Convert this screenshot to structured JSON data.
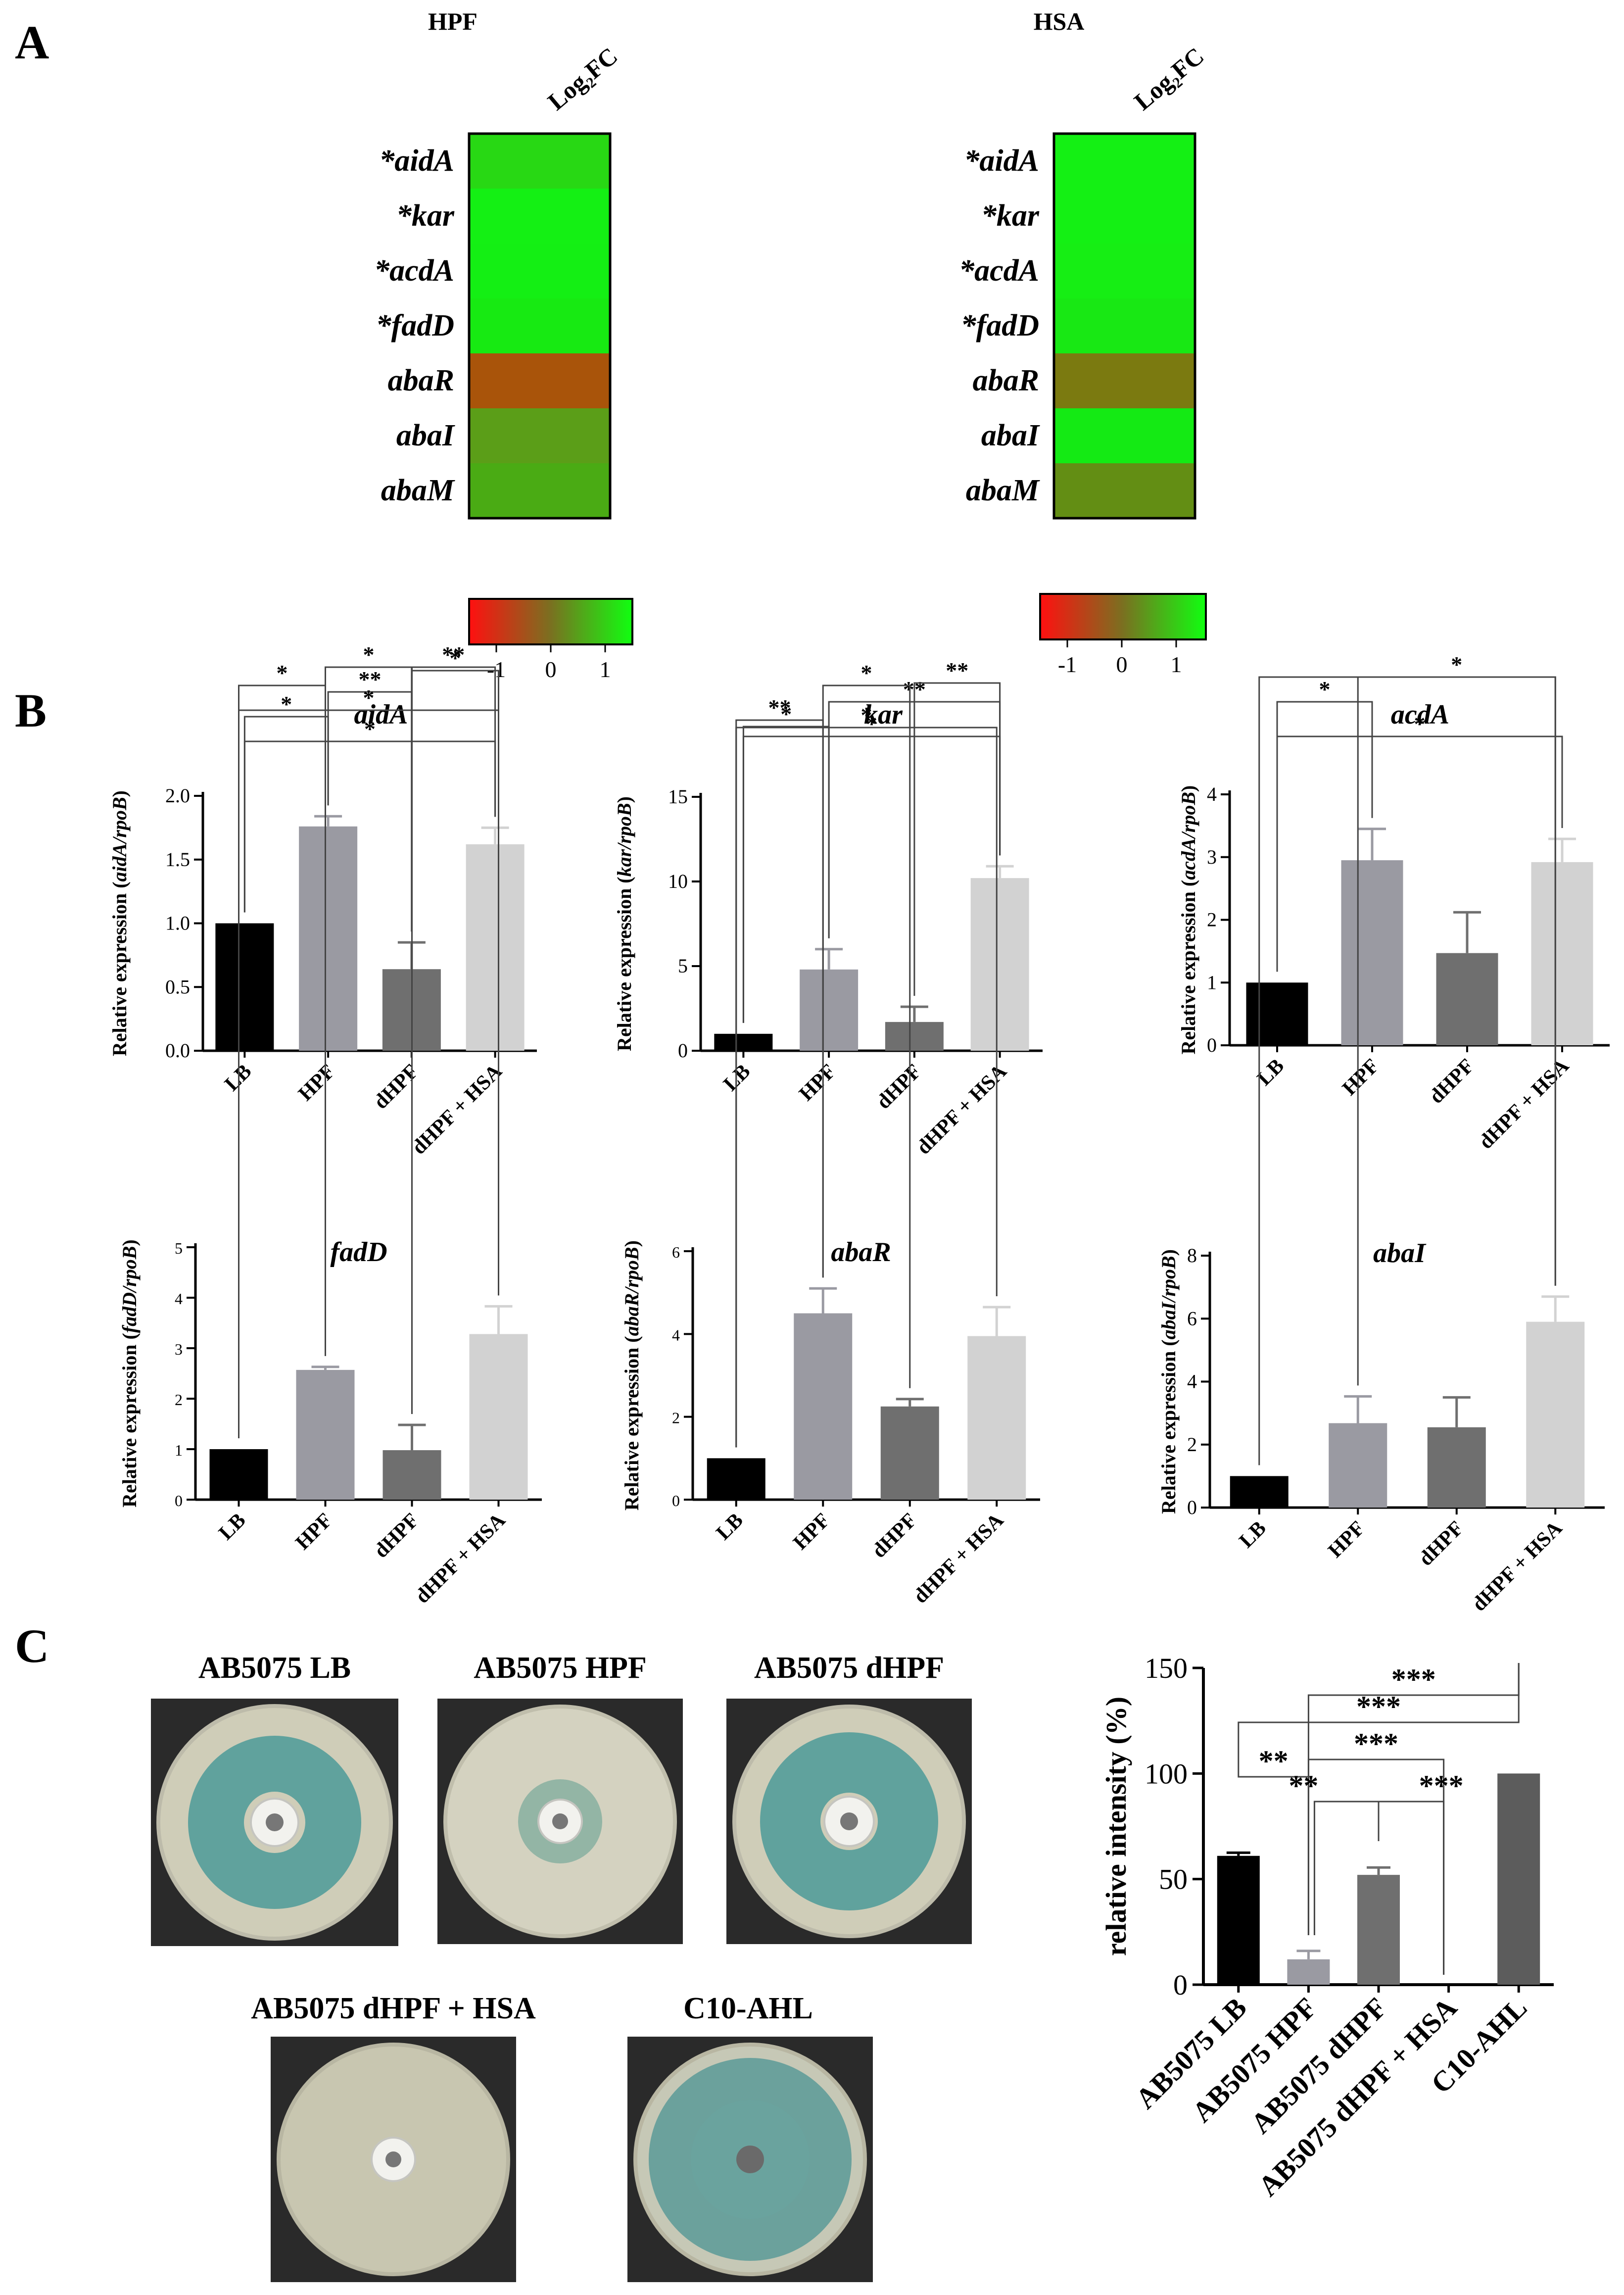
{
  "panels": {
    "a": "A",
    "b": "B",
    "c": "C"
  },
  "heatmaps": [
    {
      "title": "HPF",
      "column": "Log₂FC",
      "rows": [
        {
          "gene": "*aidA",
          "value": 0.85,
          "color": "#28d814"
        },
        {
          "gene": "*kar",
          "value": 1.0,
          "color": "#14f014"
        },
        {
          "gene": "*acdA",
          "value": 1.0,
          "color": "#14ef14"
        },
        {
          "gene": "*fadD",
          "value": 0.95,
          "color": "#17ea12"
        },
        {
          "gene": "abaR",
          "value": -0.45,
          "color": "#a9540a"
        },
        {
          "gene": "abaI",
          "value": 0.35,
          "color": "#5b9e18"
        },
        {
          "gene": "abaM",
          "value": 0.55,
          "color": "#4aab14"
        }
      ],
      "colorbar": {
        "ticks": [
          "-1",
          "0",
          "1"
        ]
      }
    },
    {
      "title": "HSA",
      "column": "Log₂FC",
      "rows": [
        {
          "gene": "*aidA",
          "value": 1.0,
          "color": "#14f014"
        },
        {
          "gene": "*kar",
          "value": 1.0,
          "color": "#14f014"
        },
        {
          "gene": "*acdA",
          "value": 1.0,
          "color": "#16ee14"
        },
        {
          "gene": "*fadD",
          "value": 0.95,
          "color": "#18e814"
        },
        {
          "gene": "abaR",
          "value": 0.1,
          "color": "#7b7a10"
        },
        {
          "gene": "abaI",
          "value": 1.0,
          "color": "#14ea14"
        },
        {
          "gene": "abaM",
          "value": 0.3,
          "color": "#638e14"
        }
      ],
      "colorbar": {
        "ticks": [
          "-1",
          "0",
          "1"
        ]
      }
    }
  ],
  "chart_data": [
    {
      "type": "bar",
      "title": "aidA",
      "ylabel_prefix": "Relative expression (",
      "ylabel_gene": "aidA/rpoB",
      "ylabel_suffix": ")",
      "categories": [
        "LB",
        "HPF",
        "dHPF",
        "dHPF + HSA"
      ],
      "values": [
        1.0,
        1.76,
        0.64,
        1.62
      ],
      "errors": [
        0.0,
        0.08,
        0.21,
        0.13
      ],
      "colors": [
        "#000000",
        "#9a9aa2",
        "#6f6f6f",
        "#d2d2d2"
      ],
      "ylim": [
        0,
        2.0
      ],
      "yticks": [
        "0.0",
        "0.5",
        "1.0",
        "1.5",
        "2.0"
      ],
      "significance": [
        {
          "from": 0,
          "to": 3,
          "label": "*"
        },
        {
          "from": 0,
          "to": 1,
          "label": "*"
        },
        {
          "from": 1,
          "to": 2,
          "label": "**"
        },
        {
          "from": 2,
          "to": 3,
          "label": "**"
        }
      ]
    },
    {
      "type": "bar",
      "title": "kar",
      "ylabel_prefix": "Relative expression (",
      "ylabel_gene": "kar/rpoB",
      "ylabel_suffix": ")",
      "categories": [
        "LB",
        "HPF",
        "dHPF",
        "dHPF + HSA"
      ],
      "values": [
        1.0,
        4.8,
        1.7,
        10.2
      ],
      "errors": [
        0.0,
        1.2,
        0.9,
        0.7
      ],
      "colors": [
        "#000000",
        "#9a9aa2",
        "#6f6f6f",
        "#d2d2d2"
      ],
      "ylim": [
        0,
        15
      ],
      "yticks": [
        "0",
        "5",
        "10",
        "15"
      ],
      "significance": [
        {
          "from": 0,
          "to": 3,
          "label": "*"
        },
        {
          "from": 0,
          "to": 1,
          "label": "*"
        },
        {
          "from": 1,
          "to": 3,
          "label": "**"
        },
        {
          "from": 2,
          "to": 3,
          "label": "**"
        }
      ]
    },
    {
      "type": "bar",
      "title": "acdA",
      "ylabel_prefix": "Relative expression (",
      "ylabel_gene": "acdA/rpoB",
      "ylabel_suffix": ")",
      "categories": [
        "LB",
        "HPF",
        "dHPF",
        "dHPF + HSA"
      ],
      "values": [
        1.0,
        2.95,
        1.47,
        2.92
      ],
      "errors": [
        0.0,
        0.5,
        0.65,
        0.37
      ],
      "colors": [
        "#000000",
        "#9a9aa2",
        "#6f6f6f",
        "#d2d2d2"
      ],
      "ylim": [
        0,
        4
      ],
      "yticks": [
        "0",
        "1",
        "2",
        "3",
        "4"
      ],
      "significance": [
        {
          "from": 0,
          "to": 3,
          "label": "*"
        },
        {
          "from": 0,
          "to": 1,
          "label": "*"
        }
      ]
    },
    {
      "type": "bar",
      "title": "fadD",
      "ylabel_prefix": "Relative expression (",
      "ylabel_gene": "fadD/rpoB",
      "ylabel_suffix": ")",
      "categories": [
        "LB",
        "HPF",
        "dHPF",
        "dHPF + HSA"
      ],
      "values": [
        1.0,
        2.57,
        0.98,
        3.28
      ],
      "errors": [
        0.0,
        0.06,
        0.5,
        0.55
      ],
      "colors": [
        "#000000",
        "#9a9aa2",
        "#6f6f6f",
        "#d2d2d2"
      ],
      "ylim": [
        0,
        5
      ],
      "yticks": [
        "0",
        "1",
        "2",
        "3",
        "4",
        "5"
      ],
      "significance": [
        {
          "from": 0,
          "to": 3,
          "label": "*"
        },
        {
          "from": 2,
          "to": 3,
          "label": "*"
        },
        {
          "from": 0,
          "to": 1,
          "label": "*"
        },
        {
          "from": 1,
          "to": 2,
          "label": "*"
        }
      ]
    },
    {
      "type": "bar",
      "title": "abaR",
      "ylabel_prefix": "Relative expression (",
      "ylabel_gene": "abaR/rpoB",
      "ylabel_suffix": ")",
      "categories": [
        "LB",
        "HPF",
        "dHPF",
        "dHPF + HSA"
      ],
      "values": [
        1.0,
        4.5,
        2.25,
        3.95
      ],
      "errors": [
        0.0,
        0.6,
        0.18,
        0.7
      ],
      "colors": [
        "#000000",
        "#9a9aa2",
        "#6f6f6f",
        "#d2d2d2"
      ],
      "ylim": [
        0,
        6
      ],
      "yticks": [
        "0",
        "2",
        "4",
        "6"
      ],
      "significance": [
        {
          "from": 0,
          "to": 3,
          "label": "*"
        },
        {
          "from": 0,
          "to": 1,
          "label": "**"
        },
        {
          "from": 1,
          "to": 2,
          "label": "*"
        }
      ]
    },
    {
      "type": "bar",
      "title": "abaI",
      "ylabel_prefix": "Relative expression (",
      "ylabel_gene": "abaI/rpoB",
      "ylabel_suffix": ")",
      "categories": [
        "LB",
        "HPF",
        "dHPF",
        "dHPF + HSA"
      ],
      "values": [
        1.0,
        2.68,
        2.55,
        5.9
      ],
      "errors": [
        0.0,
        0.85,
        0.95,
        0.8
      ],
      "colors": [
        "#000000",
        "#9a9aa2",
        "#6f6f6f",
        "#d2d2d2"
      ],
      "ylim": [
        0,
        8
      ],
      "yticks": [
        "0",
        "2",
        "4",
        "6",
        "8"
      ],
      "significance": [
        {
          "from": 1,
          "to": 3,
          "label": "*"
        },
        {
          "from": 0,
          "to": 3,
          "label": ""
        }
      ]
    },
    {
      "type": "bar",
      "title": "",
      "ylabel": "relative intensity (%)",
      "categories": [
        "AB5075 LB",
        "AB5075 HPF",
        "AB5075 dHPF",
        "AB5075 dHPF + HSA",
        "C10-AHL"
      ],
      "values": [
        61,
        12,
        52,
        0,
        100
      ],
      "errors": [
        1.5,
        4,
        3.5,
        0,
        0
      ],
      "colors": [
        "#000000",
        "#9a9aa2",
        "#6f6f6f",
        "#d2d2d2",
        "#5c5c5c"
      ],
      "ylim": [
        0,
        150
      ],
      "yticks": [
        "0",
        "50",
        "100",
        "150"
      ],
      "significance": [
        {
          "from": 1,
          "to": 4,
          "label": "***"
        },
        {
          "from": 0,
          "to": 4,
          "label": "***"
        },
        {
          "from": 1,
          "to": 3,
          "label": "***"
        },
        {
          "from": 0,
          "to": 1,
          "label": "**"
        },
        {
          "from": 1,
          "to": 2,
          "label": "**"
        },
        {
          "from": 2,
          "to": 3,
          "label": "***"
        }
      ]
    }
  ],
  "plates": [
    {
      "label": "AB5075 LB",
      "halo": "strong",
      "tint": "#4c9a98"
    },
    {
      "label": "AB5075 HPF",
      "halo": "faint",
      "tint": "#77a89a"
    },
    {
      "label": "AB5075 dHPF",
      "halo": "strong",
      "tint": "#4c9a98"
    },
    {
      "label": "AB5075 dHPF + HSA",
      "halo": "none",
      "tint": "#c8c6b0"
    },
    {
      "label": "C10-AHL",
      "halo": "full",
      "tint": "#5a9a98"
    }
  ]
}
